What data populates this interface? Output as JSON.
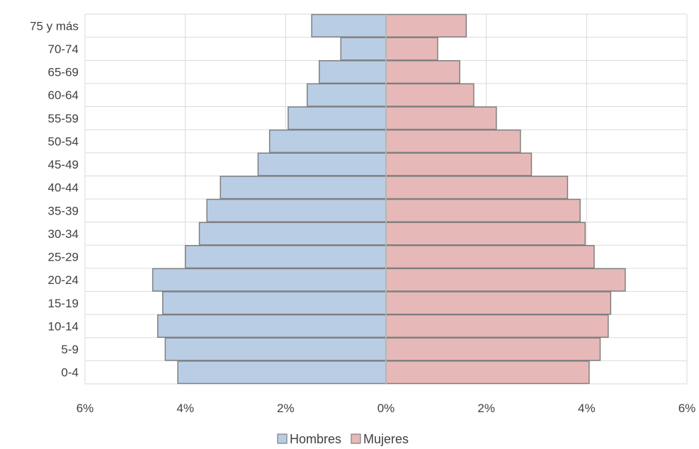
{
  "chart_data": {
    "type": "bar",
    "orientation": "horizontal",
    "title": "",
    "xlabel": "",
    "ylabel": "",
    "categories": [
      "0-4",
      "5-9",
      "10-14",
      "15-19",
      "20-24",
      "25-29",
      "30-34",
      "35-39",
      "40-44",
      "45-49",
      "50-54",
      "55-59",
      "60-64",
      "65-69",
      "70-74",
      "75 y más"
    ],
    "series": [
      {
        "name": "Hombres",
        "color": "#b9cde5",
        "values": [
          -4.15,
          -4.4,
          -4.55,
          -4.45,
          -4.65,
          -4.0,
          -3.72,
          -3.57,
          -3.3,
          -2.55,
          -2.32,
          -1.95,
          -1.57,
          -1.33,
          -0.9,
          -1.48
        ]
      },
      {
        "name": "Mujeres",
        "color": "#e6b9b8",
        "values": [
          4.05,
          4.27,
          4.43,
          4.48,
          4.77,
          4.15,
          3.97,
          3.87,
          3.62,
          2.9,
          2.68,
          2.2,
          1.75,
          1.47,
          1.03,
          1.6
        ]
      }
    ],
    "xlim": [
      -6,
      6
    ],
    "xticks": [
      -6,
      -4,
      -2,
      0,
      2,
      4,
      6
    ],
    "xtick_labels": [
      "6%",
      "4%",
      "2%",
      "0%",
      "2%",
      "4%",
      "6%"
    ],
    "grid": true,
    "legend_position": "bottom",
    "bar_outline_color": "#7f7f7f",
    "grid_color": "#d9d9d9",
    "axis_color": "#bfbfbf"
  }
}
